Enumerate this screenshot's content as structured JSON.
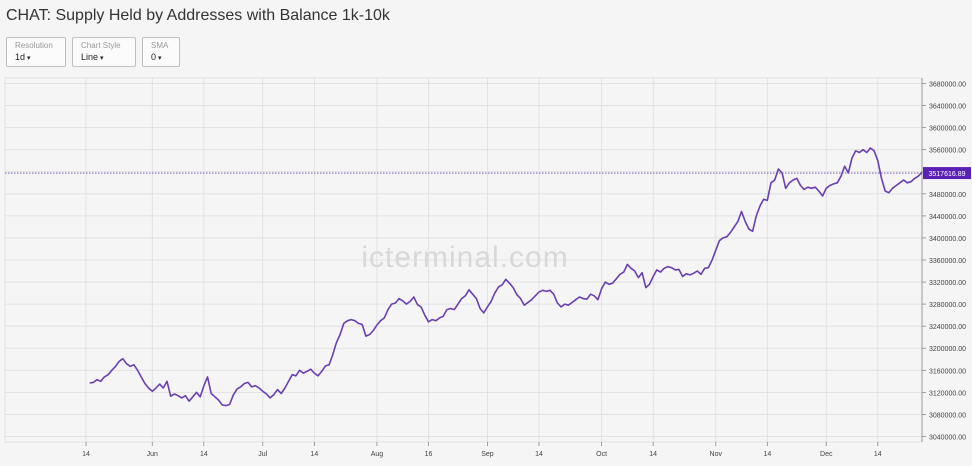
{
  "title": "CHAT: Supply Held by Addresses with Balance 1k-10k",
  "controls": {
    "resolution": {
      "label": "Resolution",
      "value": "1d"
    },
    "chart_style": {
      "label": "Chart Style",
      "value": "Line"
    },
    "sma": {
      "label": "SMA",
      "value": "0"
    }
  },
  "watermark": "icterminal.com",
  "colors": {
    "line": "#6a3fb0",
    "grid": "#dedede",
    "price_label_bg": "#5b21b6",
    "background": "#f5f5f5"
  },
  "chart_data": {
    "type": "line",
    "title": "CHAT: Supply Held by Addresses with Balance 1k-10k",
    "xlabel": "",
    "ylabel": "",
    "grid": true,
    "ylim": [
      3030000,
      3690000
    ],
    "y_ticks": [
      "3040000.00",
      "3080000.00",
      "3120000.00",
      "3160000.00",
      "3200000.00",
      "3240000.00",
      "3280000.00",
      "3320000.00",
      "3360000.00",
      "3400000.00",
      "3440000.00",
      "3480000.00",
      "3520000.00",
      "3560000.00",
      "3600000.00",
      "3640000.00",
      "3680000.00"
    ],
    "x_ticks": [
      "14",
      "Jun",
      "14",
      "Jul",
      "14",
      "Aug",
      "16",
      "Sep",
      "14",
      "Oct",
      "14",
      "Nov",
      "14",
      "Dec",
      "14"
    ],
    "x_tick_days": [
      0,
      18,
      32,
      48,
      62,
      79,
      93,
      109,
      123,
      140,
      154,
      171,
      185,
      201,
      215
    ],
    "current_value": 3517616.89,
    "current_value_label": "3517616.89",
    "series": [
      {
        "points": [
          [
            1,
            3137000
          ],
          [
            2,
            3138000
          ],
          [
            3,
            3143000
          ],
          [
            4,
            3140000
          ],
          [
            5,
            3148000
          ],
          [
            6,
            3152000
          ],
          [
            7,
            3160000
          ],
          [
            8,
            3167000
          ],
          [
            9,
            3176000
          ],
          [
            10,
            3181000
          ],
          [
            11,
            3172000
          ],
          [
            12,
            3167000
          ],
          [
            13,
            3170000
          ],
          [
            14,
            3160000
          ],
          [
            15,
            3148000
          ],
          [
            16,
            3136000
          ],
          [
            17,
            3128000
          ],
          [
            18,
            3122000
          ],
          [
            19,
            3128000
          ],
          [
            20,
            3135000
          ],
          [
            21,
            3128000
          ],
          [
            22,
            3140000
          ],
          [
            23,
            3113000
          ],
          [
            24,
            3117000
          ],
          [
            25,
            3114000
          ],
          [
            26,
            3110000
          ],
          [
            27,
            3114000
          ],
          [
            28,
            3104000
          ],
          [
            29,
            3112000
          ],
          [
            30,
            3120000
          ],
          [
            31,
            3112000
          ],
          [
            32,
            3132000
          ],
          [
            33,
            3148000
          ],
          [
            34,
            3118000
          ],
          [
            35,
            3112000
          ],
          [
            36,
            3106000
          ],
          [
            37,
            3097000
          ],
          [
            38,
            3096000
          ],
          [
            39,
            3098000
          ],
          [
            40,
            3115000
          ],
          [
            41,
            3126000
          ],
          [
            42,
            3130000
          ],
          [
            43,
            3136000
          ],
          [
            44,
            3138000
          ],
          [
            45,
            3130000
          ],
          [
            46,
            3132000
          ],
          [
            47,
            3128000
          ],
          [
            48,
            3122000
          ],
          [
            49,
            3117000
          ],
          [
            50,
            3110000
          ],
          [
            51,
            3116000
          ],
          [
            52,
            3125000
          ],
          [
            53,
            3118000
          ],
          [
            54,
            3128000
          ],
          [
            55,
            3140000
          ],
          [
            56,
            3152000
          ],
          [
            57,
            3150000
          ],
          [
            58,
            3160000
          ],
          [
            59,
            3155000
          ],
          [
            60,
            3158000
          ],
          [
            61,
            3162000
          ],
          [
            62,
            3155000
          ],
          [
            63,
            3150000
          ],
          [
            64,
            3158000
          ],
          [
            65,
            3168000
          ],
          [
            66,
            3170000
          ],
          [
            67,
            3188000
          ],
          [
            68,
            3210000
          ],
          [
            69,
            3225000
          ],
          [
            70,
            3245000
          ],
          [
            71,
            3250000
          ],
          [
            72,
            3252000
          ],
          [
            73,
            3250000
          ],
          [
            74,
            3245000
          ],
          [
            75,
            3243000
          ],
          [
            76,
            3222000
          ],
          [
            77,
            3225000
          ],
          [
            78,
            3232000
          ],
          [
            79,
            3242000
          ],
          [
            80,
            3250000
          ],
          [
            81,
            3255000
          ],
          [
            82,
            3270000
          ],
          [
            83,
            3280000
          ],
          [
            84,
            3282000
          ],
          [
            85,
            3290000
          ],
          [
            86,
            3286000
          ],
          [
            87,
            3280000
          ],
          [
            88,
            3285000
          ],
          [
            89,
            3293000
          ],
          [
            90,
            3279000
          ],
          [
            91,
            3275000
          ],
          [
            92,
            3260000
          ],
          [
            93,
            3248000
          ],
          [
            94,
            3252000
          ],
          [
            95,
            3250000
          ],
          [
            96,
            3255000
          ],
          [
            97,
            3258000
          ],
          [
            98,
            3270000
          ],
          [
            99,
            3272000
          ],
          [
            100,
            3270000
          ],
          [
            101,
            3280000
          ],
          [
            102,
            3290000
          ],
          [
            103,
            3295000
          ],
          [
            104,
            3306000
          ],
          [
            105,
            3298000
          ],
          [
            106,
            3290000
          ],
          [
            107,
            3272000
          ],
          [
            108,
            3264000
          ],
          [
            109,
            3275000
          ],
          [
            110,
            3285000
          ],
          [
            111,
            3300000
          ],
          [
            112,
            3311000
          ],
          [
            113,
            3315000
          ],
          [
            114,
            3325000
          ],
          [
            115,
            3318000
          ],
          [
            116,
            3310000
          ],
          [
            117,
            3297000
          ],
          [
            118,
            3290000
          ],
          [
            119,
            3278000
          ],
          [
            120,
            3283000
          ],
          [
            121,
            3288000
          ],
          [
            122,
            3295000
          ],
          [
            123,
            3302000
          ],
          [
            124,
            3305000
          ],
          [
            125,
            3303000
          ],
          [
            126,
            3305000
          ],
          [
            127,
            3298000
          ],
          [
            128,
            3282000
          ],
          [
            129,
            3275000
          ],
          [
            130,
            3280000
          ],
          [
            131,
            3278000
          ],
          [
            132,
            3283000
          ],
          [
            133,
            3288000
          ],
          [
            134,
            3293000
          ],
          [
            135,
            3290000
          ],
          [
            136,
            3289000
          ],
          [
            137,
            3298000
          ],
          [
            138,
            3295000
          ],
          [
            139,
            3288000
          ],
          [
            140,
            3308000
          ],
          [
            141,
            3320000
          ],
          [
            142,
            3316000
          ],
          [
            143,
            3318000
          ],
          [
            144,
            3326000
          ],
          [
            145,
            3334000
          ],
          [
            146,
            3338000
          ],
          [
            147,
            3352000
          ],
          [
            148,
            3345000
          ],
          [
            149,
            3340000
          ],
          [
            150,
            3328000
          ],
          [
            151,
            3337000
          ],
          [
            152,
            3310000
          ],
          [
            153,
            3316000
          ],
          [
            154,
            3330000
          ],
          [
            155,
            3342000
          ],
          [
            156,
            3338000
          ],
          [
            157,
            3345000
          ],
          [
            158,
            3348000
          ],
          [
            159,
            3346000
          ],
          [
            160,
            3342000
          ],
          [
            161,
            3343000
          ],
          [
            162,
            3330000
          ],
          [
            163,
            3335000
          ],
          [
            164,
            3333000
          ],
          [
            165,
            3336000
          ],
          [
            166,
            3340000
          ],
          [
            167,
            3334000
          ],
          [
            168,
            3345000
          ],
          [
            169,
            3346000
          ],
          [
            170,
            3360000
          ],
          [
            171,
            3378000
          ],
          [
            172,
            3395000
          ],
          [
            173,
            3400000
          ],
          [
            174,
            3402000
          ],
          [
            175,
            3410000
          ],
          [
            176,
            3420000
          ],
          [
            177,
            3430000
          ],
          [
            178,
            3448000
          ],
          [
            179,
            3430000
          ],
          [
            180,
            3416000
          ],
          [
            181,
            3412000
          ],
          [
            182,
            3440000
          ],
          [
            183,
            3458000
          ],
          [
            184,
            3470000
          ],
          [
            185,
            3468000
          ],
          [
            186,
            3500000
          ],
          [
            187,
            3505000
          ],
          [
            188,
            3525000
          ],
          [
            189,
            3518000
          ],
          [
            190,
            3490000
          ],
          [
            191,
            3500000
          ],
          [
            192,
            3505000
          ],
          [
            193,
            3508000
          ],
          [
            194,
            3495000
          ],
          [
            195,
            3488000
          ],
          [
            196,
            3492000
          ],
          [
            197,
            3490000
          ],
          [
            198,
            3492000
          ],
          [
            199,
            3485000
          ],
          [
            200,
            3476000
          ],
          [
            201,
            3490000
          ],
          [
            202,
            3495000
          ],
          [
            203,
            3498000
          ],
          [
            204,
            3500000
          ],
          [
            205,
            3512000
          ],
          [
            206,
            3530000
          ],
          [
            207,
            3518000
          ],
          [
            208,
            3545000
          ],
          [
            209,
            3558000
          ],
          [
            210,
            3555000
          ],
          [
            211,
            3560000
          ],
          [
            212,
            3555000
          ],
          [
            213,
            3563000
          ],
          [
            214,
            3558000
          ],
          [
            215,
            3540000
          ],
          [
            216,
            3508000
          ],
          [
            217,
            3485000
          ],
          [
            218,
            3482000
          ],
          [
            219,
            3490000
          ],
          [
            220,
            3495000
          ],
          [
            221,
            3500000
          ],
          [
            222,
            3505000
          ],
          [
            223,
            3500000
          ],
          [
            224,
            3502000
          ],
          [
            225,
            3508000
          ],
          [
            226,
            3512000
          ],
          [
            227,
            3519000
          ]
        ]
      }
    ]
  }
}
